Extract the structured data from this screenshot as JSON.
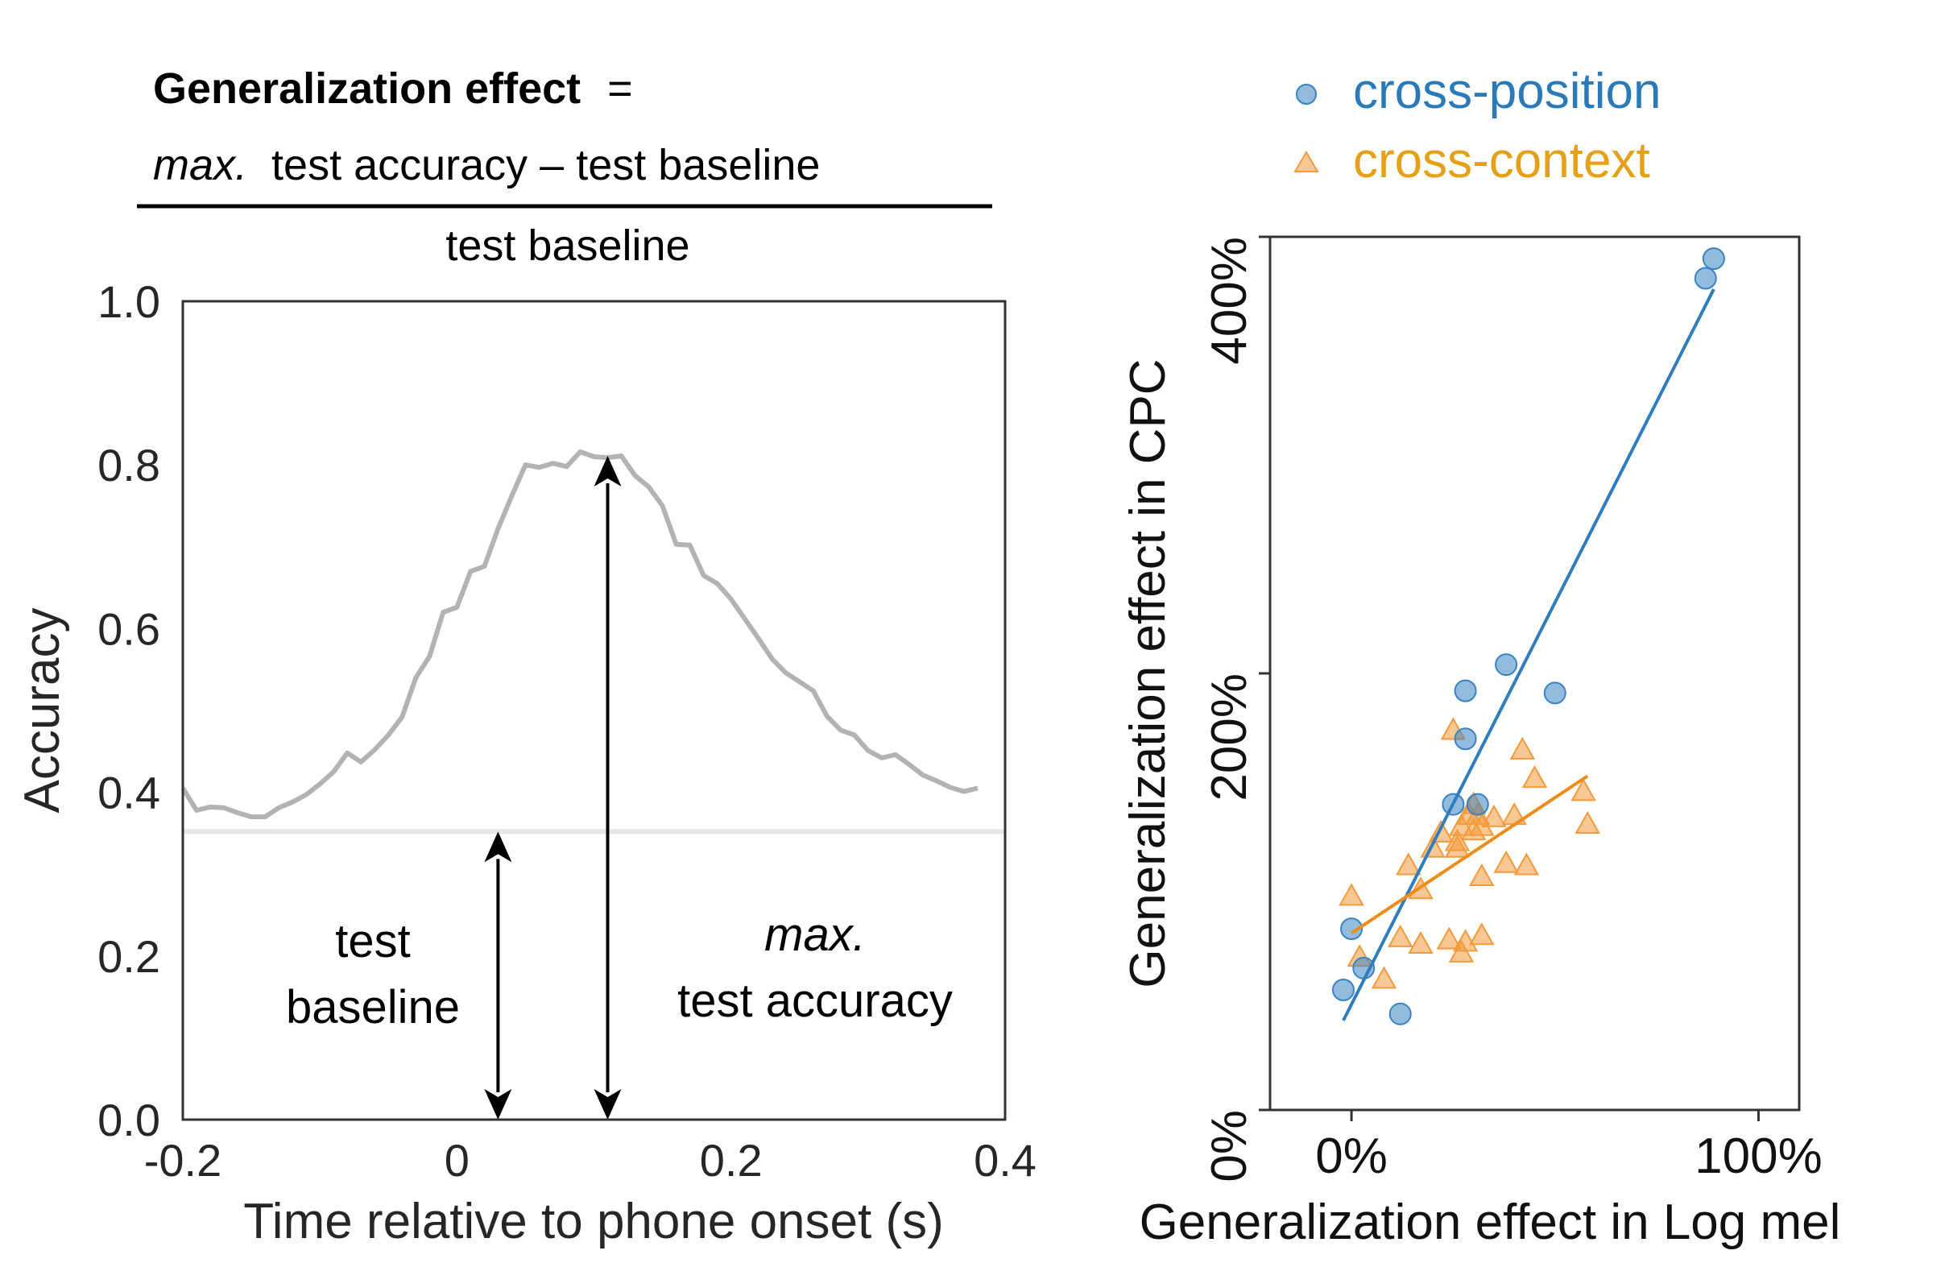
{
  "chart_data": [
    {
      "type": "line",
      "formula": {
        "bold_term": "Generalization effect",
        "equals": "=",
        "numerator_italic": "max.",
        "numerator_rest": " test accuracy – test baseline",
        "denominator": "test baseline"
      },
      "xlabel": "Time relative to phone onset (s)",
      "ylabel": "Accuracy",
      "xlim": [
        -0.2,
        0.4
      ],
      "ylim": [
        0.0,
        1.0
      ],
      "x_ticks": [
        -0.2,
        0,
        0.2,
        0.4
      ],
      "x_tick_labels": [
        "-0.2",
        "0",
        "0.2",
        "0.4"
      ],
      "y_ticks": [
        0.0,
        0.2,
        0.4,
        0.6,
        0.8,
        1.0
      ],
      "y_tick_labels": [
        "0.0",
        "0.2",
        "0.4",
        "0.6",
        "0.8",
        "1.0"
      ],
      "baseline": 0.352,
      "x": [
        -0.2,
        -0.19,
        -0.18,
        -0.17,
        -0.16,
        -0.15,
        -0.14,
        -0.13,
        -0.12,
        -0.11,
        -0.1,
        -0.09,
        -0.08,
        -0.07,
        -0.06,
        -0.05,
        -0.04,
        -0.03,
        -0.02,
        -0.01,
        0.0,
        0.01,
        0.02,
        0.03,
        0.04,
        0.05,
        0.06,
        0.07,
        0.08,
        0.09,
        0.1,
        0.11,
        0.12,
        0.13,
        0.14,
        0.15,
        0.16,
        0.17,
        0.18,
        0.19,
        0.2,
        0.21,
        0.22,
        0.23,
        0.24,
        0.25,
        0.26,
        0.27,
        0.28,
        0.29,
        0.3,
        0.31,
        0.32,
        0.33,
        0.34,
        0.35,
        0.36,
        0.37,
        0.38
      ],
      "y": [
        0.405,
        0.378,
        0.382,
        0.381,
        0.375,
        0.37,
        0.37,
        0.381,
        0.388,
        0.397,
        0.41,
        0.425,
        0.448,
        0.437,
        0.452,
        0.47,
        0.492,
        0.54,
        0.566,
        0.62,
        0.626,
        0.67,
        0.676,
        0.722,
        0.762,
        0.8,
        0.797,
        0.802,
        0.798,
        0.816,
        0.81,
        0.809,
        0.811,
        0.787,
        0.773,
        0.75,
        0.703,
        0.702,
        0.665,
        0.655,
        0.636,
        0.612,
        0.588,
        0.563,
        0.546,
        0.535,
        0.524,
        0.493,
        0.476,
        0.47,
        0.451,
        0.442,
        0.446,
        0.434,
        0.421,
        0.414,
        0.406,
        0.401,
        0.405
      ],
      "annotations": {
        "baseline_label": [
          "test",
          "baseline"
        ],
        "baseline_arrow_x": 0.03,
        "max_label_italic": "max.",
        "max_label": "test accuracy",
        "max_arrow_x": 0.11,
        "max_value": 0.811
      }
    },
    {
      "type": "scatter",
      "xlabel": "Generalization effect in Log mel",
      "ylabel": "Generalization effect in CPC",
      "xlim": [
        -20,
        110
      ],
      "ylim": [
        0,
        400
      ],
      "x_ticks": [
        0,
        100
      ],
      "x_tick_labels": [
        "0%",
        "100%"
      ],
      "y_ticks": [
        0,
        200,
        400
      ],
      "y_tick_labels": [
        "0%",
        "200%",
        "400%"
      ],
      "legend_position": "top",
      "series": [
        {
          "name": "cross-position",
          "marker": "circle",
          "color": "#3a83c2",
          "points": [
            [
              -2,
              55
            ],
            [
              3,
              65
            ],
            [
              0,
              83
            ],
            [
              12,
              44
            ],
            [
              25,
              140
            ],
            [
              31,
              140
            ],
            [
              28,
              170
            ],
            [
              28,
              192
            ],
            [
              38,
              204
            ],
            [
              50,
              191
            ],
            [
              87,
              381
            ],
            [
              89,
              390
            ]
          ],
          "fit": [
            [
              -2,
              41
            ],
            [
              89,
              376
            ]
          ]
        },
        {
          "name": "cross-context",
          "marker": "triangle",
          "color": "#f39a3d",
          "points": [
            [
              0,
              98
            ],
            [
              2,
              70
            ],
            [
              8,
              60
            ],
            [
              12,
              79
            ],
            [
              14,
              112
            ],
            [
              17,
              101
            ],
            [
              17,
              76
            ],
            [
              20,
              120
            ],
            [
              22,
              127
            ],
            [
              24,
              78
            ],
            [
              26,
              120
            ],
            [
              26,
              123
            ],
            [
              25,
              174
            ],
            [
              27,
              130
            ],
            [
              27,
              72
            ],
            [
              28,
              77
            ],
            [
              29,
              135
            ],
            [
              30,
              140
            ],
            [
              30,
              128
            ],
            [
              31,
              135
            ],
            [
              32,
              130
            ],
            [
              32,
              80
            ],
            [
              32,
              107
            ],
            [
              35,
              134
            ],
            [
              38,
              113
            ],
            [
              40,
              135
            ],
            [
              42,
              165
            ],
            [
              43,
              112
            ],
            [
              45,
              152
            ],
            [
              57,
              146
            ],
            [
              58,
              131
            ]
          ],
          "fit": [
            [
              0,
              81
            ],
            [
              58,
              153
            ]
          ]
        }
      ]
    }
  ]
}
